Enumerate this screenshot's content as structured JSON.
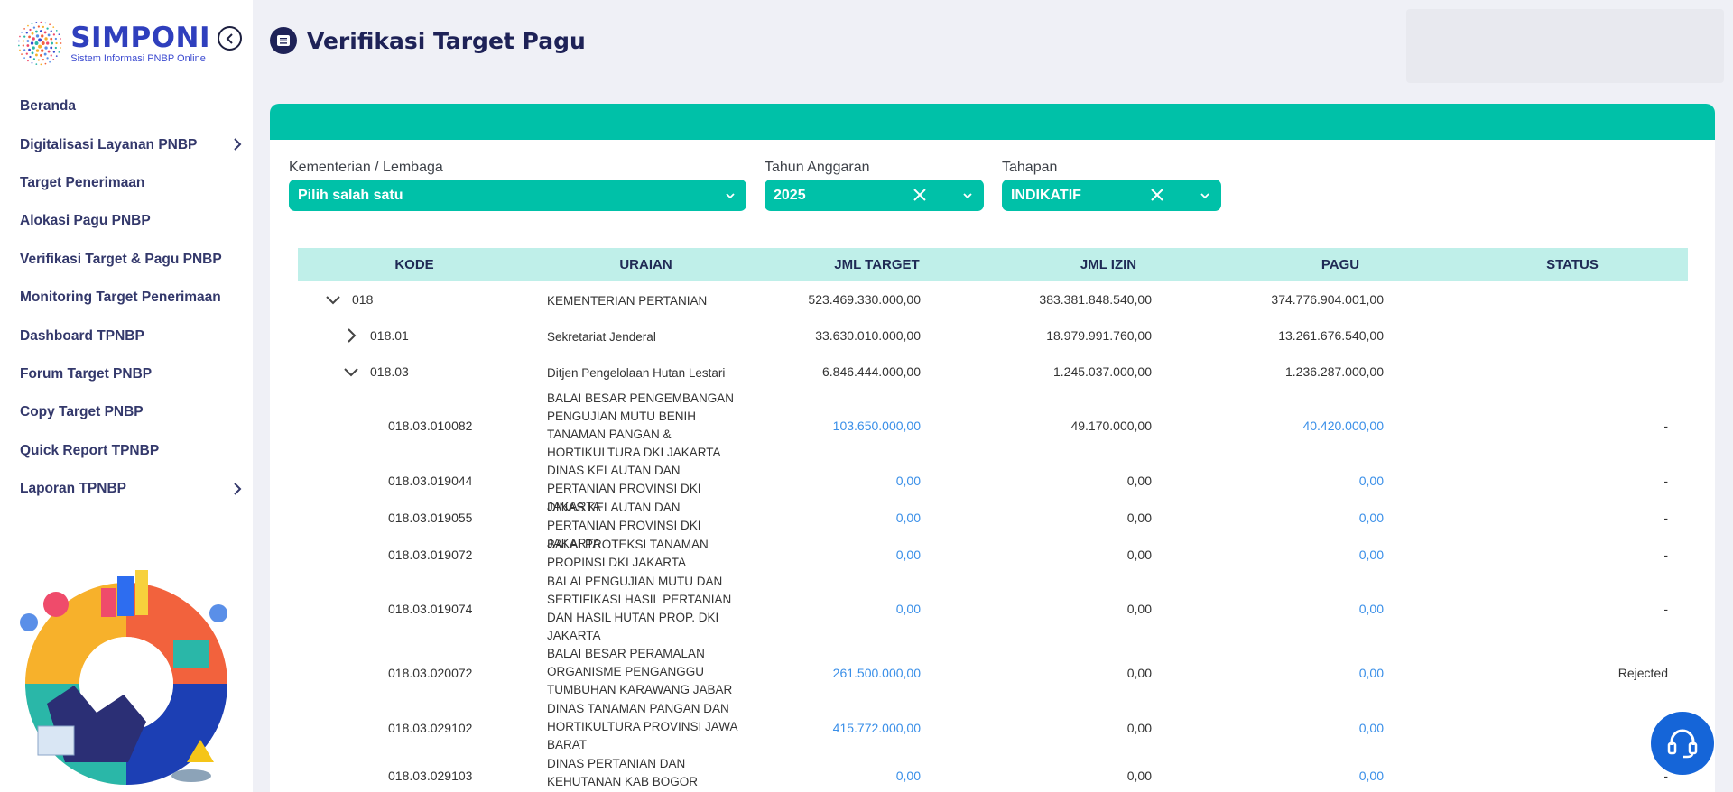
{
  "logo": {
    "title": "SIMPONI",
    "subtitle": "Sistem Informasi PNBP Online"
  },
  "sidebar": {
    "items": [
      {
        "label": "Beranda",
        "has_submenu": false
      },
      {
        "label": "Digitalisasi Layanan PNBP",
        "has_submenu": true
      },
      {
        "label": "Target Penerimaan",
        "has_submenu": false
      },
      {
        "label": "Alokasi Pagu PNBP",
        "has_submenu": false
      },
      {
        "label": "Verifikasi Target & Pagu PNBP",
        "has_submenu": false
      },
      {
        "label": "Monitoring Target Penerimaan",
        "has_submenu": false
      },
      {
        "label": "Dashboard TPNBP",
        "has_submenu": false
      },
      {
        "label": "Forum Target PNBP",
        "has_submenu": false
      },
      {
        "label": "Copy Target PNBP",
        "has_submenu": false
      },
      {
        "label": "Quick Report TPNBP",
        "has_submenu": false
      },
      {
        "label": "Laporan TPNBP",
        "has_submenu": true
      }
    ]
  },
  "header": {
    "title": "Verifikasi Target Pagu"
  },
  "filters": {
    "kementerian": {
      "label": "Kementerian / Lembaga",
      "value": "Pilih salah satu"
    },
    "tahun": {
      "label": "Tahun Anggaran",
      "value": "2025"
    },
    "tahapan": {
      "label": "Tahapan",
      "value": "INDIKATIF"
    }
  },
  "table": {
    "columns": [
      "KODE",
      "URAIAN",
      "JML TARGET",
      "JML IZIN",
      "PAGU",
      "STATUS"
    ],
    "rows": [
      {
        "kode": "018",
        "uraian": "KEMENTERIAN PERTANIAN",
        "jml_target": "523.469.330.000,00",
        "jml_izin": "383.381.848.540,00",
        "pagu": "374.776.904.001,00",
        "status": "",
        "level": 0,
        "toggle": "expanded"
      },
      {
        "kode": "018.01",
        "uraian": "Sekretariat Jenderal",
        "jml_target": "33.630.010.000,00",
        "jml_izin": "18.979.991.760,00",
        "pagu": "13.261.676.540,00",
        "status": "",
        "level": 1,
        "toggle": "collapsed"
      },
      {
        "kode": "018.03",
        "uraian": "Ditjen Pengelolaan Hutan Lestari",
        "jml_target": "6.846.444.000,00",
        "jml_izin": "1.245.037.000,00",
        "pagu": "1.236.287.000,00",
        "status": "",
        "level": 1,
        "toggle": "expanded"
      },
      {
        "kode": "018.03.010082",
        "uraian": "BALAI BESAR PENGEMBANGAN PENGUJIAN MUTU BENIH TANAMAN PANGAN & HORTIKULTURA DKI JAKARTA",
        "jml_target": "103.650.000,00",
        "jml_izin": "49.170.000,00",
        "pagu": "40.420.000,00",
        "status": "-",
        "level": 2
      },
      {
        "kode": "018.03.019044",
        "uraian": "DINAS KELAUTAN DAN PERTANIAN PROVINSI DKI JAKARTA",
        "jml_target": "0,00",
        "jml_izin": "0,00",
        "pagu": "0,00",
        "status": "-",
        "level": 2
      },
      {
        "kode": "018.03.019055",
        "uraian": "DINAS KELAUTAN DAN PERTANIAN PROVINSI DKI JAKARTA",
        "jml_target": "0,00",
        "jml_izin": "0,00",
        "pagu": "0,00",
        "status": "-",
        "level": 2
      },
      {
        "kode": "018.03.019072",
        "uraian": "BALAI PROTEKSI TANAMAN PROPINSI DKI JAKARTA",
        "jml_target": "0,00",
        "jml_izin": "0,00",
        "pagu": "0,00",
        "status": "-",
        "level": 2
      },
      {
        "kode": "018.03.019074",
        "uraian": "BALAI PENGUJIAN MUTU DAN SERTIFIKASI HASIL PERTANIAN DAN HASIL HUTAN PROP. DKI JAKARTA",
        "jml_target": "0,00",
        "jml_izin": "0,00",
        "pagu": "0,00",
        "status": "-",
        "level": 2
      },
      {
        "kode": "018.03.020072",
        "uraian": "BALAI BESAR PERAMALAN ORGANISME PENGANGGU TUMBUHAN KARAWANG JABAR",
        "jml_target": "261.500.000,00",
        "jml_izin": "0,00",
        "pagu": "0,00",
        "status": "Rejected",
        "level": 2
      },
      {
        "kode": "018.03.029102",
        "uraian": "DINAS TANAMAN PANGAN DAN HORTIKULTURA PROVINSI JAWA BARAT",
        "jml_target": "415.772.000,00",
        "jml_izin": "0,00",
        "pagu": "0,00",
        "status": "",
        "level": 2
      },
      {
        "kode": "018.03.029103",
        "uraian": "DINAS PERTANIAN DAN KEHUTANAN KAB BOGOR",
        "jml_target": "0,00",
        "jml_izin": "0,00",
        "pagu": "0,00",
        "status": "-",
        "level": 2
      }
    ]
  },
  "colors": {
    "accent": "#00c1a8",
    "header_row": "#bfefe9",
    "navy": "#1e2257",
    "link": "#3a8fe8",
    "help_button": "#1565d8"
  }
}
